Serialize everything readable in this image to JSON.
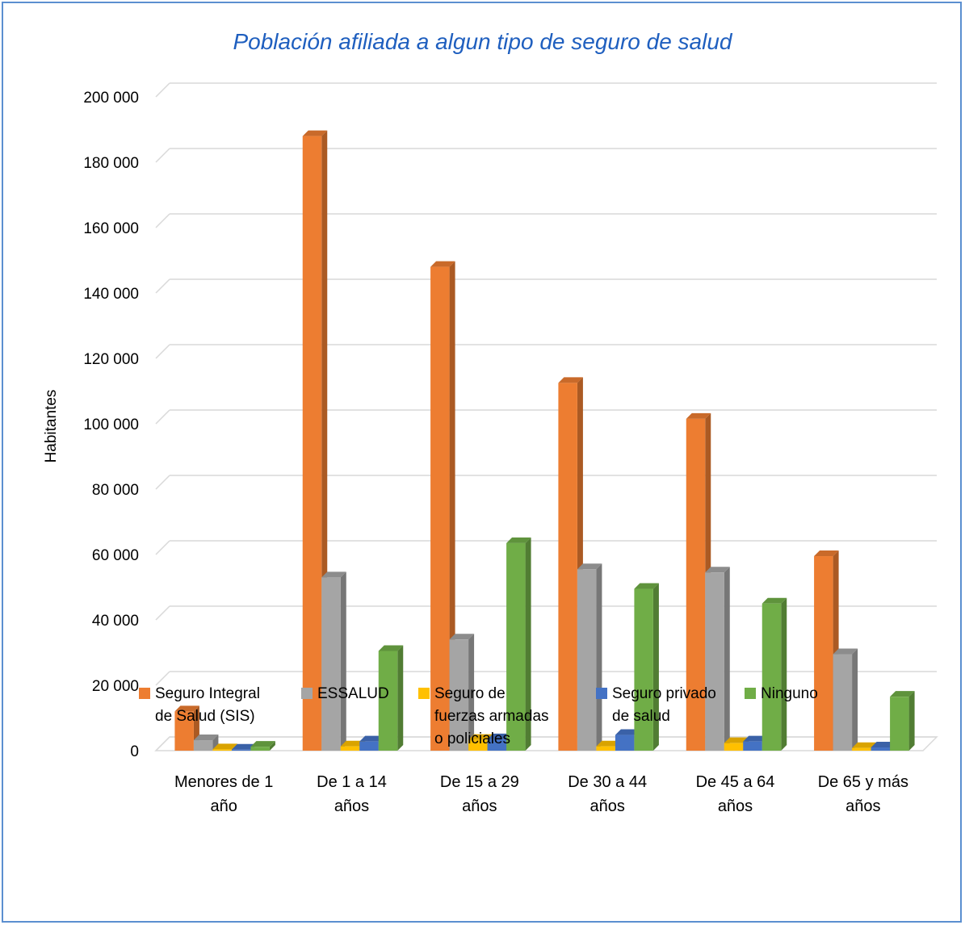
{
  "chart_data": {
    "type": "bar",
    "title": "Población afiliada a algun tipo de seguro de salud",
    "ylabel": "Habitantes",
    "xlabel": "",
    "ylim": [
      0,
      200000
    ],
    "yticks": [
      "0",
      "20 000",
      "40 000",
      "60 000",
      "80 000",
      "100 000",
      "120 000",
      "140 000",
      "160 000",
      "180 000",
      "200 000"
    ],
    "grid": true,
    "legend_position": "bottom",
    "categories": [
      [
        "Menores de 1",
        "año"
      ],
      [
        "De 1 a 14",
        "años"
      ],
      [
        "De 15 a 29",
        "años"
      ],
      [
        "De 30 a 44",
        "años"
      ],
      [
        "De 45 a 64",
        "años"
      ],
      [
        "De 65 y más",
        "años"
      ]
    ],
    "series": [
      {
        "name": "Seguro Integral\nde Salud (SIS)",
        "color": "#ed7d31",
        "values": [
          12000,
          188000,
          148000,
          112500,
          101500,
          59500
        ]
      },
      {
        "name": "ESSALUD",
        "color": "#a5a5a5",
        "values": [
          3200,
          53000,
          34000,
          55500,
          54500,
          29500
        ]
      },
      {
        "name": "Seguro de\nfuerzas armadas\no policiales",
        "color": "#ffc000",
        "values": [
          400,
          1300,
          3300,
          1300,
          2300,
          800
        ]
      },
      {
        "name": "Seguro privado\nde salud",
        "color": "#4472c4",
        "values": [
          300,
          2800,
          3500,
          4800,
          2800,
          1000
        ]
      },
      {
        "name": "Ninguno",
        "color": "#70ad47",
        "values": [
          1200,
          30500,
          63500,
          49500,
          45000,
          16500
        ]
      }
    ]
  }
}
